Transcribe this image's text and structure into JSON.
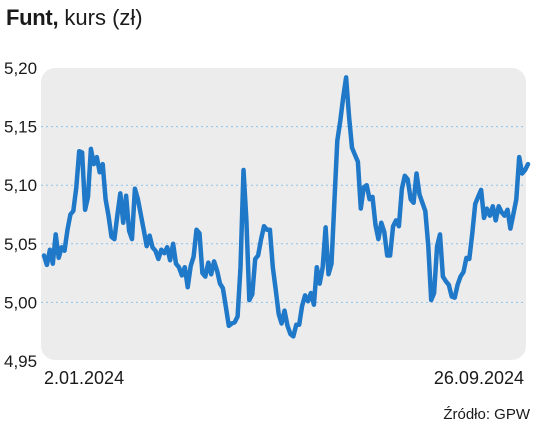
{
  "title": {
    "bold": "Funt,",
    "rest": "kurs (zł)"
  },
  "source": "Źródło: GPW",
  "colors": {
    "line": "#1f78c8",
    "plot_bg": "#ececec",
    "grid": "#8fc3ea"
  },
  "chart_data": {
    "type": "line",
    "title": "Funt, kurs (zł)",
    "xlabel": "",
    "ylabel": "",
    "x_tick_labels": [
      "2.01.2024",
      "26.09.2024"
    ],
    "y_tick_labels": [
      "5,20",
      "5,15",
      "5,10",
      "5,05",
      "5,00",
      "4,95"
    ],
    "y_ticks": [
      5.2,
      5.15,
      5.1,
      5.05,
      5.0,
      4.95
    ],
    "ylim": [
      4.95,
      5.2
    ],
    "grid": "horizontal dashed",
    "series": [
      {
        "values": [
          5.04,
          5.032,
          5.045,
          5.033,
          5.058,
          5.038,
          5.047,
          5.044,
          5.062,
          5.075,
          5.078,
          5.098,
          5.129,
          5.128,
          5.079,
          5.09,
          5.131,
          5.118,
          5.124,
          5.111,
          5.118,
          5.088,
          5.074,
          5.056,
          5.054,
          5.074,
          5.093,
          5.068,
          5.091,
          5.061,
          5.054,
          5.097,
          5.088,
          5.075,
          5.062,
          5.048,
          5.057,
          5.047,
          5.044,
          5.037,
          5.045,
          5.042,
          5.047,
          5.036,
          5.05,
          5.033,
          5.03,
          5.023,
          5.03,
          5.013,
          5.031,
          5.039,
          5.062,
          5.059,
          5.025,
          5.022,
          5.034,
          5.024,
          5.035,
          5.027,
          5.016,
          5.012,
          4.996,
          4.98,
          4.982,
          4.983,
          4.988,
          5.03,
          5.113,
          5.07,
          5.002,
          5.007,
          5.037,
          5.04,
          5.054,
          5.065,
          5.062,
          5.062,
          5.03,
          5.011,
          4.99,
          4.982,
          4.993,
          4.98,
          4.973,
          4.971,
          4.981,
          4.981,
          4.997,
          5.006,
          5.001,
          5.008,
          4.998,
          5.03,
          5.016,
          5.03,
          5.064,
          5.024,
          5.033,
          5.086,
          5.138,
          5.155,
          5.175,
          5.192,
          5.158,
          5.132,
          5.126,
          5.12,
          5.08,
          5.098,
          5.1,
          5.088,
          5.09,
          5.066,
          5.054,
          5.068,
          5.06,
          5.04,
          5.04,
          5.065,
          5.07,
          5.065,
          5.097,
          5.108,
          5.105,
          5.088,
          5.085,
          5.11,
          5.092,
          5.085,
          5.078,
          5.048,
          5.002,
          5.008,
          5.048,
          5.058,
          5.022,
          5.018,
          5.015,
          5.005,
          5.004,
          5.015,
          5.022,
          5.026,
          5.038,
          5.037,
          5.059,
          5.084,
          5.09,
          5.096,
          5.072,
          5.08,
          5.074,
          5.082,
          5.07,
          5.082,
          5.077,
          5.074,
          5.079,
          5.063,
          5.075,
          5.088,
          5.124,
          5.11,
          5.113,
          5.118
        ]
      }
    ]
  }
}
